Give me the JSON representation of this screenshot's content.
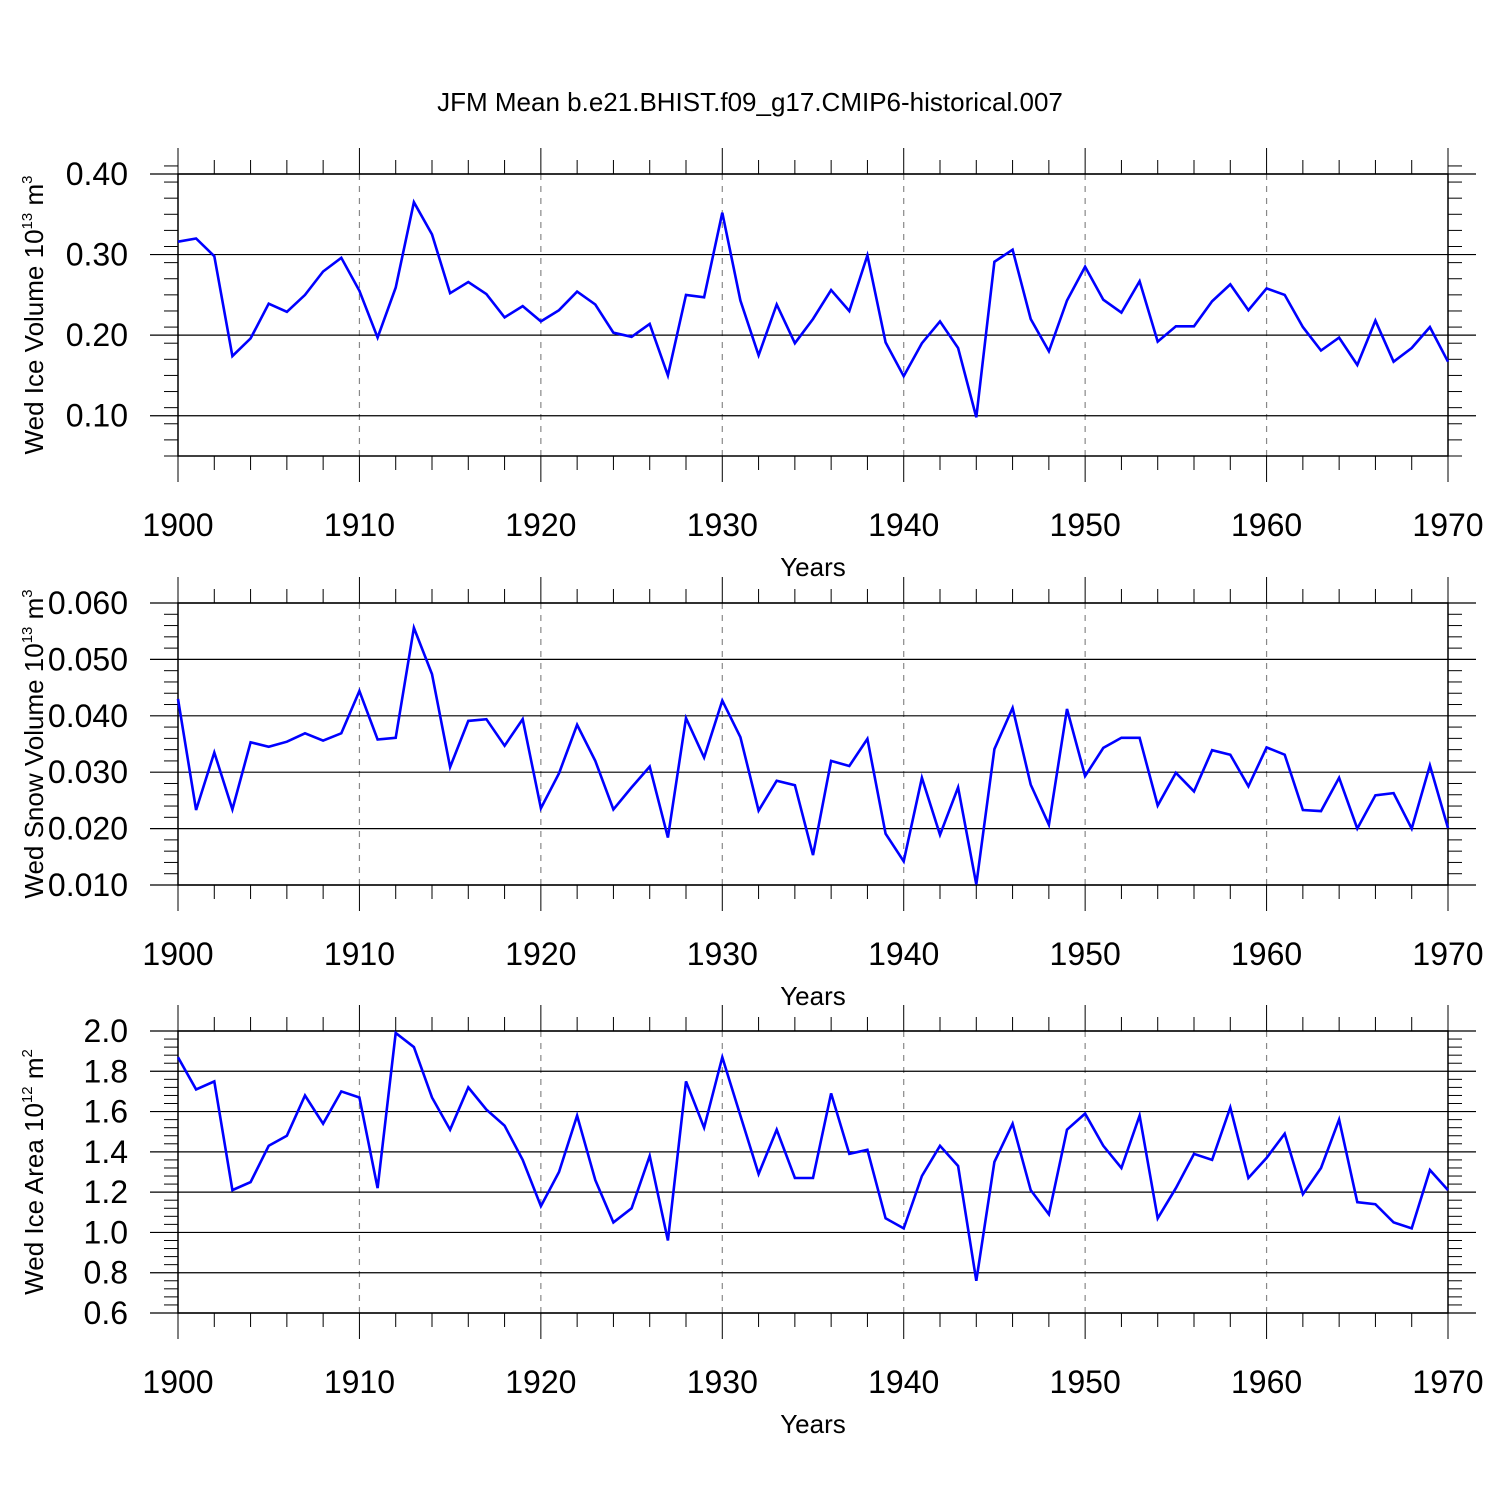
{
  "chart_data": [
    {
      "type": "line",
      "title": "JFM Mean b.e21.BHIST.f09_g17.CMIP6-historical.007",
      "ylabel": {
        "main": "Wed Ice Volume 10",
        "exp": "13",
        "unit": " m",
        "unit_exp": "3"
      },
      "xlabel": "Years",
      "xlim": [
        1900,
        1970
      ],
      "ylim": [
        0.05,
        0.4
      ],
      "yticks": [
        0.1,
        0.2,
        0.3,
        0.4
      ],
      "ytick_labels": [
        "0.10",
        "0.20",
        "0.30",
        "0.40"
      ],
      "ytick_minor_step": 0.02,
      "xticks": [
        1900,
        1910,
        1920,
        1930,
        1940,
        1950,
        1960,
        1970
      ],
      "xtick_labels": [
        "1900",
        "1910",
        "1920",
        "1930",
        "1940",
        "1950",
        "1960",
        "1970"
      ],
      "grid_x": [
        1910,
        1920,
        1930,
        1940,
        1950,
        1960
      ],
      "line_color": "#0000ff",
      "x": [
        1900,
        1901,
        1902,
        1903,
        1904,
        1905,
        1906,
        1907,
        1908,
        1909,
        1910,
        1911,
        1912,
        1913,
        1914,
        1915,
        1916,
        1917,
        1918,
        1919,
        1920,
        1921,
        1922,
        1923,
        1924,
        1925,
        1926,
        1927,
        1928,
        1929,
        1930,
        1931,
        1932,
        1933,
        1934,
        1935,
        1936,
        1937,
        1938,
        1939,
        1940,
        1941,
        1942,
        1943,
        1944,
        1945,
        1946,
        1947,
        1948,
        1949,
        1950,
        1951,
        1952,
        1953,
        1954,
        1955,
        1956,
        1957,
        1958,
        1959,
        1960,
        1961,
        1962,
        1963,
        1964,
        1965,
        1966,
        1967,
        1968,
        1969,
        1970
      ],
      "values": [
        0.316,
        0.32,
        0.298,
        0.174,
        0.196,
        0.239,
        0.229,
        0.25,
        0.279,
        0.296,
        0.255,
        0.197,
        0.259,
        0.365,
        0.325,
        0.252,
        0.266,
        0.251,
        0.222,
        0.236,
        0.217,
        0.231,
        0.254,
        0.238,
        0.203,
        0.198,
        0.214,
        0.15,
        0.25,
        0.247,
        0.352,
        0.243,
        0.175,
        0.238,
        0.19,
        0.22,
        0.256,
        0.23,
        0.299,
        0.191,
        0.149,
        0.19,
        0.217,
        0.184,
        0.098,
        0.291,
        0.306,
        0.22,
        0.18,
        0.243,
        0.285,
        0.244,
        0.228,
        0.267,
        0.192,
        0.211,
        0.211,
        0.242,
        0.263,
        0.231,
        0.258,
        0.25,
        0.21,
        0.181,
        0.197,
        0.163,
        0.218,
        0.167,
        0.184,
        0.21,
        0.167
      ]
    },
    {
      "type": "line",
      "ylabel": {
        "main": "Wed Snow Volume 10",
        "exp": "13",
        "unit": " m",
        "unit_exp": "3"
      },
      "xlabel": "Years",
      "xlim": [
        1900,
        1970
      ],
      "ylim": [
        0.01,
        0.06
      ],
      "yticks": [
        0.01,
        0.02,
        0.03,
        0.04,
        0.05,
        0.06
      ],
      "ytick_labels": [
        "0.010",
        "0.020",
        "0.030",
        "0.040",
        "0.050",
        "0.060"
      ],
      "ytick_minor_step": 0.002,
      "xticks": [
        1900,
        1910,
        1920,
        1930,
        1940,
        1950,
        1960,
        1970
      ],
      "xtick_labels": [
        "1900",
        "1910",
        "1920",
        "1930",
        "1940",
        "1950",
        "1960",
        "1970"
      ],
      "grid_x": [
        1910,
        1920,
        1930,
        1940,
        1950,
        1960
      ],
      "line_color": "#0000ff",
      "x": [
        1900,
        1901,
        1902,
        1903,
        1904,
        1905,
        1906,
        1907,
        1908,
        1909,
        1910,
        1911,
        1912,
        1913,
        1914,
        1915,
        1916,
        1917,
        1918,
        1919,
        1920,
        1921,
        1922,
        1923,
        1924,
        1925,
        1926,
        1927,
        1928,
        1929,
        1930,
        1931,
        1932,
        1933,
        1934,
        1935,
        1936,
        1937,
        1938,
        1939,
        1940,
        1941,
        1942,
        1943,
        1944,
        1945,
        1946,
        1947,
        1948,
        1949,
        1950,
        1951,
        1952,
        1953,
        1954,
        1955,
        1956,
        1957,
        1958,
        1959,
        1960,
        1961,
        1962,
        1963,
        1964,
        1965,
        1966,
        1967,
        1968,
        1969,
        1970
      ],
      "values": [
        0.043,
        0.0233,
        0.0335,
        0.0234,
        0.0353,
        0.0345,
        0.0354,
        0.0369,
        0.0356,
        0.0369,
        0.0444,
        0.0358,
        0.0361,
        0.0556,
        0.0474,
        0.0309,
        0.0391,
        0.0394,
        0.0347,
        0.0394,
        0.0236,
        0.0298,
        0.0384,
        0.032,
        0.0234,
        0.0273,
        0.031,
        0.0184,
        0.0396,
        0.0326,
        0.0427,
        0.0362,
        0.0232,
        0.0285,
        0.0277,
        0.0153,
        0.032,
        0.0311,
        0.0359,
        0.0191,
        0.0142,
        0.029,
        0.0189,
        0.0273,
        0.0101,
        0.0341,
        0.0414,
        0.0278,
        0.0207,
        0.0412,
        0.0293,
        0.0343,
        0.0361,
        0.0361,
        0.0241,
        0.0299,
        0.0266,
        0.0339,
        0.0331,
        0.0275,
        0.0344,
        0.0331,
        0.0233,
        0.0231,
        0.029,
        0.02,
        0.0259,
        0.0263,
        0.02,
        0.0312,
        0.0201
      ]
    },
    {
      "type": "line",
      "ylabel": {
        "main": "Wed Ice Area 10",
        "exp": "12",
        "unit": " m",
        "unit_exp": "2"
      },
      "xlabel": "Years",
      "xlim": [
        1900,
        1970
      ],
      "ylim": [
        0.6,
        2.0
      ],
      "yticks": [
        0.6,
        0.8,
        1.0,
        1.2,
        1.4,
        1.6,
        1.8,
        2.0
      ],
      "ytick_labels": [
        "0.6",
        "0.8",
        "1.0",
        "1.2",
        "1.4",
        "1.6",
        "1.8",
        "2.0"
      ],
      "ytick_minor_step": 0.04,
      "xticks": [
        1900,
        1910,
        1920,
        1930,
        1940,
        1950,
        1960,
        1970
      ],
      "xtick_labels": [
        "1900",
        "1910",
        "1920",
        "1930",
        "1940",
        "1950",
        "1960",
        "1970"
      ],
      "grid_x": [
        1910,
        1920,
        1930,
        1940,
        1950,
        1960
      ],
      "line_color": "#0000ff",
      "x": [
        1900,
        1901,
        1902,
        1903,
        1904,
        1905,
        1906,
        1907,
        1908,
        1909,
        1910,
        1911,
        1912,
        1913,
        1914,
        1915,
        1916,
        1917,
        1918,
        1919,
        1920,
        1921,
        1922,
        1923,
        1924,
        1925,
        1926,
        1927,
        1928,
        1929,
        1930,
        1931,
        1932,
        1933,
        1934,
        1935,
        1936,
        1937,
        1938,
        1939,
        1940,
        1941,
        1942,
        1943,
        1944,
        1945,
        1946,
        1947,
        1948,
        1949,
        1950,
        1951,
        1952,
        1953,
        1954,
        1955,
        1956,
        1957,
        1958,
        1959,
        1960,
        1961,
        1962,
        1963,
        1964,
        1965,
        1966,
        1967,
        1968,
        1969,
        1970
      ],
      "values": [
        1.87,
        1.71,
        1.75,
        1.21,
        1.25,
        1.43,
        1.48,
        1.68,
        1.54,
        1.7,
        1.67,
        1.22,
        1.99,
        1.92,
        1.67,
        1.51,
        1.72,
        1.61,
        1.53,
        1.36,
        1.13,
        1.3,
        1.58,
        1.26,
        1.05,
        1.12,
        1.38,
        0.96,
        1.75,
        1.52,
        1.87,
        1.58,
        1.29,
        1.51,
        1.27,
        1.27,
        1.69,
        1.39,
        1.41,
        1.07,
        1.02,
        1.28,
        1.43,
        1.33,
        0.76,
        1.35,
        1.54,
        1.21,
        1.09,
        1.51,
        1.59,
        1.43,
        1.32,
        1.58,
        1.07,
        1.22,
        1.39,
        1.36,
        1.62,
        1.27,
        1.37,
        1.49,
        1.19,
        1.32,
        1.56,
        1.15,
        1.14,
        1.05,
        1.02,
        1.31,
        1.21
      ]
    }
  ]
}
